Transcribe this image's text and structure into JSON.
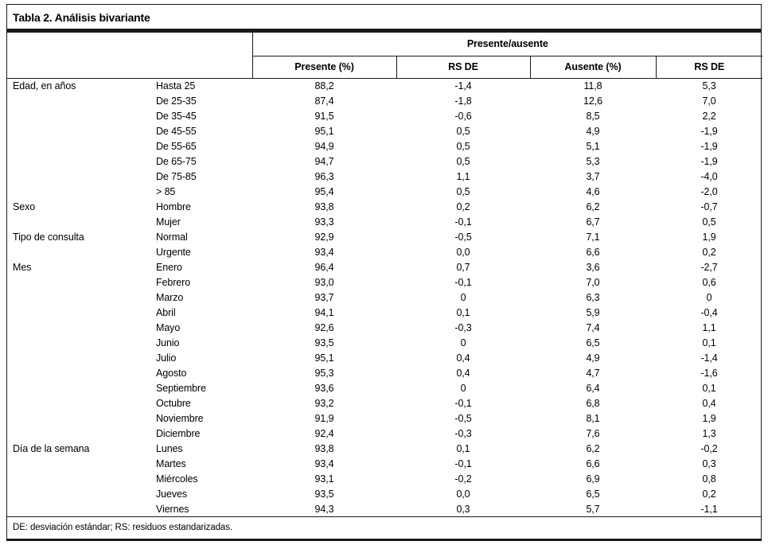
{
  "title": "Tabla 2. Análisis bivariante",
  "table": {
    "group_header": "Presente/ausente",
    "columns": [
      "Presente (%)",
      "RS DE",
      "Ausente (%)",
      "RS DE"
    ],
    "sections": [
      {
        "category": "Edad, en años",
        "rows": [
          {
            "label": "Hasta 25",
            "values": [
              "88,2",
              "-1,4",
              "11,8",
              "5,3"
            ]
          },
          {
            "label": "De 25-35",
            "values": [
              "87,4",
              "-1,8",
              "12,6",
              "7,0"
            ]
          },
          {
            "label": "De 35-45",
            "values": [
              "91,5",
              "-0,6",
              "8,5",
              "2,2"
            ]
          },
          {
            "label": "De 45-55",
            "values": [
              "95,1",
              "0,5",
              "4,9",
              "-1,9"
            ]
          },
          {
            "label": "De 55-65",
            "values": [
              "94,9",
              "0,5",
              "5,1",
              "-1,9"
            ]
          },
          {
            "label": "De 65-75",
            "values": [
              "94,7",
              "0,5",
              "5,3",
              "-1,9"
            ]
          },
          {
            "label": "De 75-85",
            "values": [
              "96,3",
              "1,1",
              "3,7",
              "-4,0"
            ]
          },
          {
            "label": "> 85",
            "values": [
              "95,4",
              "0,5",
              "4,6",
              "-2,0"
            ]
          }
        ]
      },
      {
        "category": "Sexo",
        "rows": [
          {
            "label": "Hombre",
            "values": [
              "93,8",
              "0,2",
              "6,2",
              "-0,7"
            ]
          },
          {
            "label": "Mujer",
            "values": [
              "93,3",
              "-0,1",
              "6,7",
              "0,5"
            ]
          }
        ]
      },
      {
        "category": "Tipo de consulta",
        "rows": [
          {
            "label": "Normal",
            "values": [
              "92,9",
              "-0,5",
              "7,1",
              "1,9"
            ]
          },
          {
            "label": "Urgente",
            "values": [
              "93,4",
              "0,0",
              "6,6",
              "0,2"
            ]
          }
        ]
      },
      {
        "category": "Mes",
        "rows": [
          {
            "label": "Enero",
            "values": [
              "96,4",
              "0,7",
              "3,6",
              "-2,7"
            ]
          },
          {
            "label": "Febrero",
            "values": [
              "93,0",
              "-0,1",
              "7,0",
              "0,6"
            ]
          },
          {
            "label": "Marzo",
            "values": [
              "93,7",
              "0",
              "6,3",
              "0"
            ]
          },
          {
            "label": "Abril",
            "values": [
              "94,1",
              "0,1",
              "5,9",
              "-0,4"
            ]
          },
          {
            "label": "Mayo",
            "values": [
              "92,6",
              "-0,3",
              "7,4",
              "1,1"
            ]
          },
          {
            "label": "Junio",
            "values": [
              "93,5",
              "0",
              "6,5",
              "0,1"
            ]
          },
          {
            "label": "Julio",
            "values": [
              "95,1",
              "0,4",
              "4,9",
              "-1,4"
            ]
          },
          {
            "label": "Agosto",
            "values": [
              "95,3",
              "0,4",
              "4,7",
              "-1,6"
            ]
          },
          {
            "label": "Septiembre",
            "values": [
              "93,6",
              "0",
              "6,4",
              "0,1"
            ]
          },
          {
            "label": "Octubre",
            "values": [
              "93,2",
              "-0,1",
              "6,8",
              "0,4"
            ]
          },
          {
            "label": "Noviembre",
            "values": [
              "91,9",
              "-0,5",
              "8,1",
              "1,9"
            ]
          },
          {
            "label": "Diciembre",
            "values": [
              "92,4",
              "-0,3",
              "7,6",
              "1,3"
            ]
          }
        ]
      },
      {
        "category": "Día de la semana",
        "rows": [
          {
            "label": "Lunes",
            "values": [
              "93,8",
              "0,1",
              "6,2",
              "-0,2"
            ]
          },
          {
            "label": "Martes",
            "values": [
              "93,4",
              "-0,1",
              "6,6",
              "0,3"
            ]
          },
          {
            "label": "Miércoles",
            "values": [
              "93,1",
              "-0,2",
              "6,9",
              "0,8"
            ]
          },
          {
            "label": "Jueves",
            "values": [
              "93,5",
              "0,0",
              "6,5",
              "0,2"
            ]
          },
          {
            "label": "Viernes",
            "values": [
              "94,3",
              "0,3",
              "5,7",
              "-1,1"
            ]
          }
        ]
      }
    ],
    "footnote": "DE: desviación estándar; RS: residuos estandarizadas."
  }
}
